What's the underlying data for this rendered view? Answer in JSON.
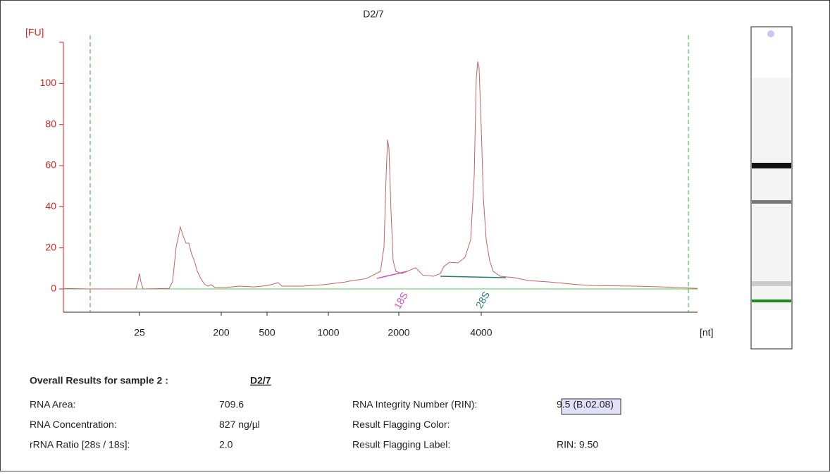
{
  "chart_data": {
    "type": "line",
    "title": "D2/7",
    "y_axis_label": "[FU]",
    "x_axis_label": "[nt]",
    "color": "#c46262",
    "x": [
      3.6,
      6.8,
      18.1,
      22.8,
      24.1,
      25,
      25.9,
      27.4,
      53,
      58,
      63.5,
      70.7,
      76,
      81.6,
      87.7,
      94,
      101,
      109,
      119,
      130,
      142,
      156,
      170,
      218,
      289,
      383,
      504,
      568,
      591,
      751,
      953,
      1181,
      1266,
      1357,
      1454,
      1558,
      1670,
      1729,
      1765,
      1790,
      1815,
      1853,
      1892,
      1945,
      2048,
      2172,
      2306,
      2446,
      2674,
      2836,
      2922,
      3064,
      3290,
      3490,
      3660,
      3770,
      3838,
      3883,
      3928,
      4000,
      4072,
      4169,
      4295,
      4425,
      4692,
      5285,
      5949,
      7105,
      9007,
      10140,
      14470,
      18340,
      20640,
      24650
    ],
    "values": [
      0.3,
      0,
      0,
      0,
      4.1,
      7.5,
      3.4,
      0,
      0.3,
      3.4,
      20.5,
      30.1,
      25.7,
      22.3,
      22.3,
      17.1,
      13.7,
      8.6,
      5.1,
      2.4,
      1.4,
      2.1,
      0.7,
      0.7,
      1.4,
      1.0,
      1.7,
      3.1,
      1.4,
      1.4,
      2.1,
      3.4,
      4.1,
      4.5,
      5.1,
      6.8,
      8.6,
      20.5,
      54.8,
      72.6,
      68.5,
      37.7,
      13.7,
      8.6,
      7.5,
      8.9,
      10.3,
      6.8,
      6.2,
      7.5,
      11,
      13,
      12.7,
      15.4,
      24,
      54.8,
      102.7,
      110.6,
      107.9,
      78.8,
      44.5,
      24,
      13.7,
      8.6,
      6.2,
      5.5,
      4.1,
      3.4,
      2.1,
      1.7,
      1.4,
      1.0,
      0.7,
      0.3
    ],
    "xlim": [
      3.6,
      24650
    ],
    "ylim": [
      -11.3,
      120
    ],
    "xticks": [
      25,
      200,
      500,
      1000,
      2000,
      4000
    ],
    "yticks": [
      0,
      20,
      40,
      60,
      80,
      100
    ],
    "annotations": [
      "18S",
      "28S"
    ]
  },
  "results": {
    "title": "Overall Results for sample 2  :",
    "sample": "D2/7",
    "left": [
      [
        "RNA Area:",
        "709.6"
      ],
      [
        "RNA Concentration:",
        "827 ng/µl"
      ],
      [
        "rRNA Ratio [28s / 18s]:",
        "2.0"
      ]
    ],
    "right": [
      [
        "RNA Integrity Number (RIN):",
        "9.5   (B.02.08)"
      ],
      [
        "Result Flagging Color:",
        ""
      ],
      [
        "Result Flagging Label:",
        "RIN: 9.50"
      ]
    ],
    "flag_color": "#e0e0fb"
  }
}
